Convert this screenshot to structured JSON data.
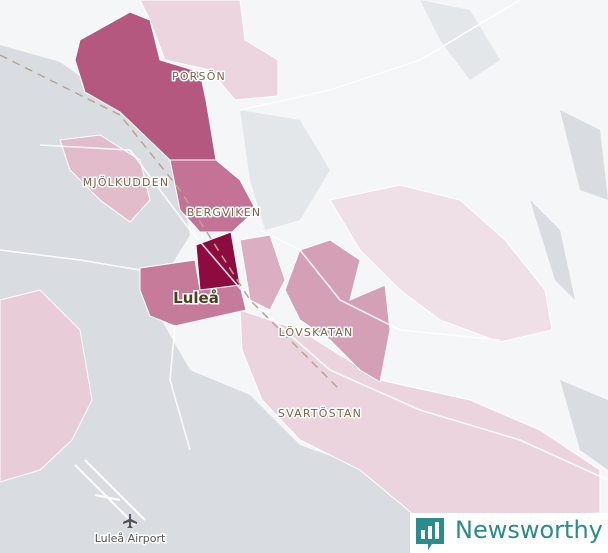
{
  "places": [
    {
      "label": "PORSÖN"
    },
    {
      "label": "MJÖLKUDDEN"
    },
    {
      "label": "BERGVIKEN"
    },
    {
      "label": "Luleå"
    },
    {
      "label": "LÖVSKATAN"
    },
    {
      "label": "SVARTÖSTAN"
    }
  ],
  "airport": "Luleå Airport",
  "brand": "Newsworthy"
}
